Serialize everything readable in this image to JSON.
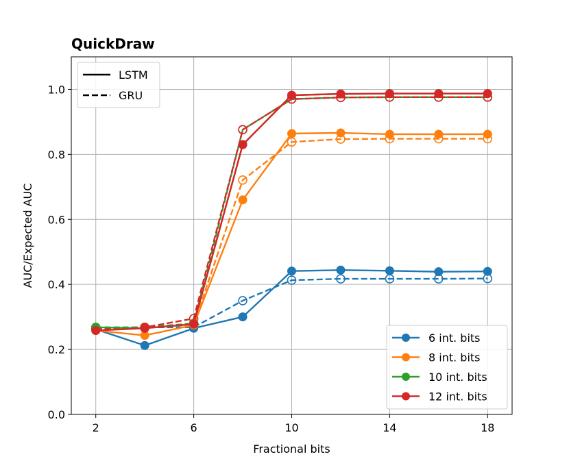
{
  "chart_data": {
    "type": "line",
    "title": "QuickDraw",
    "xlabel": "Fractional bits",
    "ylabel": "AUC/Expected AUC",
    "x": [
      2,
      4,
      6,
      8,
      10,
      12,
      14,
      16,
      18
    ],
    "xticks": [
      2,
      6,
      10,
      14,
      18
    ],
    "xlim": [
      1,
      19
    ],
    "ylim": [
      0,
      1.1
    ],
    "yticks": [
      0.0,
      0.2,
      0.4,
      0.6,
      0.8,
      1.0
    ],
    "ytick_labels": [
      "0.0",
      "0.2",
      "0.4",
      "0.6",
      "0.8",
      "1.0"
    ],
    "grid": true,
    "style_legend": {
      "placement": "top-left",
      "entries": [
        {
          "label": "LSTM",
          "dash": "solid"
        },
        {
          "label": "GRU",
          "dash": "dashed"
        }
      ]
    },
    "color_legend": {
      "placement": "bottom-right",
      "entries": [
        {
          "label": "6 int. bits",
          "color": "#1f77b4"
        },
        {
          "label": "8 int. bits",
          "color": "#ff7f0e"
        },
        {
          "label": "10 int. bits",
          "color": "#2ca02c"
        },
        {
          "label": "12 int. bits",
          "color": "#d62728"
        }
      ]
    },
    "series": [
      {
        "name": "6 int. bits",
        "model": "GRU",
        "color": "#1f77b4",
        "dash": "dashed",
        "marker": "open",
        "values": [
          0.262,
          0.268,
          0.268,
          0.35,
          0.413,
          0.417,
          0.417,
          0.417,
          0.418
        ]
      },
      {
        "name": "8 int. bits",
        "model": "GRU",
        "color": "#ff7f0e",
        "dash": "dashed",
        "marker": "open",
        "values": [
          0.262,
          0.268,
          0.276,
          0.721,
          0.838,
          0.847,
          0.848,
          0.848,
          0.848
        ]
      },
      {
        "name": "10 int. bits",
        "model": "GRU",
        "color": "#2ca02c",
        "dash": "dashed",
        "marker": "open",
        "values": [
          0.268,
          0.268,
          0.28,
          0.876,
          0.97,
          0.975,
          0.976,
          0.976,
          0.976
        ]
      },
      {
        "name": "12 int. bits",
        "model": "GRU",
        "color": "#d62728",
        "dash": "dashed",
        "marker": "open",
        "values": [
          0.262,
          0.268,
          0.295,
          0.876,
          0.97,
          0.975,
          0.976,
          0.976,
          0.976
        ]
      },
      {
        "name": "6 int. bits",
        "model": "LSTM",
        "color": "#1f77b4",
        "dash": "solid",
        "marker": "filled",
        "values": [
          0.262,
          0.212,
          0.265,
          0.3,
          0.441,
          0.444,
          0.442,
          0.439,
          0.44
        ]
      },
      {
        "name": "8 int. bits",
        "model": "LSTM",
        "color": "#ff7f0e",
        "dash": "solid",
        "marker": "filled",
        "values": [
          0.258,
          0.243,
          0.275,
          0.66,
          0.864,
          0.866,
          0.862,
          0.862,
          0.862
        ]
      },
      {
        "name": "10 int. bits",
        "model": "LSTM",
        "color": "#2ca02c",
        "dash": "solid",
        "marker": "filled",
        "values": [
          0.268,
          0.265,
          0.278,
          0.83,
          0.982,
          0.986,
          0.987,
          0.987,
          0.987
        ]
      },
      {
        "name": "12 int. bits",
        "model": "LSTM",
        "color": "#d62728",
        "dash": "solid",
        "marker": "filled",
        "values": [
          0.258,
          0.265,
          0.278,
          0.83,
          0.982,
          0.986,
          0.987,
          0.987,
          0.987
        ]
      }
    ]
  }
}
